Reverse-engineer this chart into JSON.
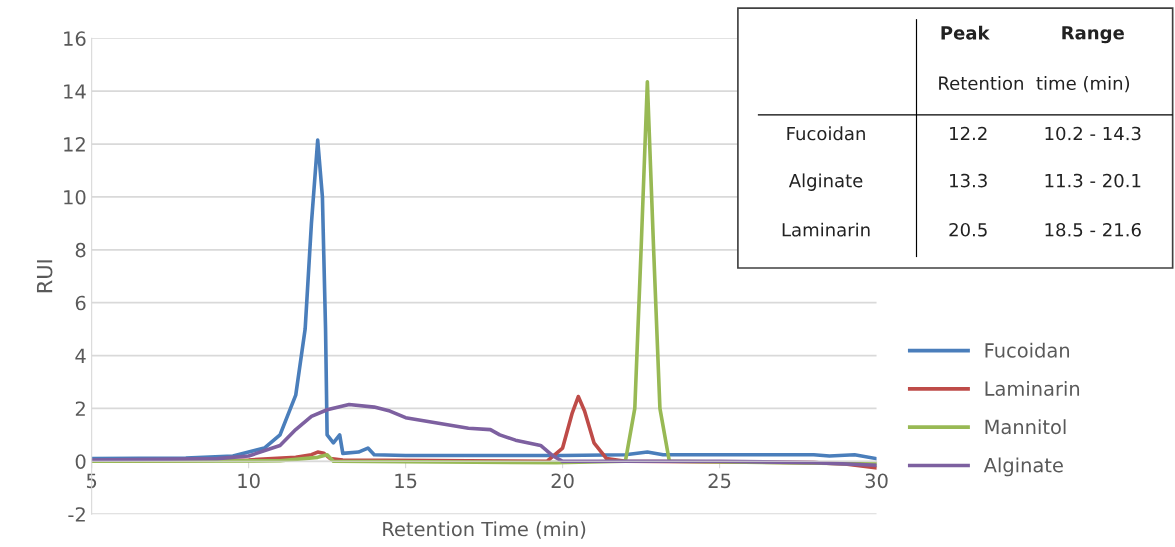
{
  "chart_data": {
    "type": "line",
    "xlabel": "Retention Time (min)",
    "ylabel": "RUI",
    "xlim": [
      5,
      30
    ],
    "xticks": [
      5,
      10,
      15,
      20,
      25,
      30
    ],
    "ylim": [
      -2,
      16
    ],
    "yticks": [
      -2,
      0,
      2,
      4,
      6,
      8,
      10,
      12,
      14,
      16
    ],
    "grid": "y",
    "legend": "right",
    "marker": "none",
    "line_style": "solid",
    "series": [
      {
        "name": "Fucoidan",
        "color": "#4a7ebb",
        "x": [
          5,
          8,
          9.5,
          10.5,
          11,
          11.5,
          11.8,
          12.0,
          12.2,
          12.35,
          12.45,
          12.5,
          12.7,
          12.9,
          13.0,
          13.5,
          13.8,
          14.0,
          15,
          20,
          22,
          22.7,
          23.2,
          28,
          28.5,
          29.3,
          30
        ],
        "values": [
          0.1,
          0.12,
          0.2,
          0.5,
          1.0,
          2.5,
          5,
          9,
          12.15,
          10,
          5,
          1.0,
          0.7,
          1.0,
          0.3,
          0.35,
          0.5,
          0.25,
          0.22,
          0.22,
          0.25,
          0.35,
          0.25,
          0.25,
          0.2,
          0.25,
          0.1
        ]
      },
      {
        "name": "Laminarin",
        "color": "#be4b48",
        "x": [
          5,
          10,
          11.5,
          12.0,
          12.2,
          12.4,
          12.6,
          13,
          19.5,
          20,
          20.3,
          20.5,
          20.7,
          21.0,
          21.4,
          22,
          28,
          29,
          30
        ],
        "values": [
          0,
          0.05,
          0.15,
          0.25,
          0.35,
          0.3,
          0.1,
          0.05,
          0.0,
          0.5,
          1.8,
          2.45,
          1.9,
          0.7,
          0.1,
          0,
          -0.05,
          -0.1,
          -0.25
        ]
      },
      {
        "name": "Mannitol",
        "color": "#98b954",
        "x": [
          5,
          11,
          12.2,
          12.5,
          12.7,
          19.8,
          22.0,
          22.3,
          22.5,
          22.7,
          22.9,
          23.1,
          23.4,
          30
        ],
        "values": [
          0,
          0.02,
          0.15,
          0.25,
          0,
          -0.05,
          0,
          2,
          8,
          14.35,
          8,
          2,
          0,
          -0.1
        ]
      },
      {
        "name": "Alginate",
        "color": "#7d60a0",
        "x": [
          5,
          9,
          10,
          11,
          11.5,
          12,
          12.5,
          13.2,
          14,
          14.5,
          15,
          16,
          17,
          17.7,
          18,
          18.5,
          19.3,
          19.7,
          20,
          25,
          28,
          30
        ],
        "values": [
          0.05,
          0.1,
          0.2,
          0.6,
          1.2,
          1.7,
          1.95,
          2.15,
          2.05,
          1.9,
          1.65,
          1.45,
          1.25,
          1.2,
          1.0,
          0.8,
          0.6,
          0.2,
          0.0,
          0.0,
          -0.05,
          -0.15
        ]
      }
    ],
    "annotations": [
      "Peak",
      "Range",
      "Retention  time (min)",
      "Fucoidan",
      "12.2",
      "10.2 - 14.3",
      "Alginate",
      "13.3",
      "11.3 - 20.1",
      "Laminarin",
      "20.5",
      "18.5 - 21.6"
    ]
  }
}
